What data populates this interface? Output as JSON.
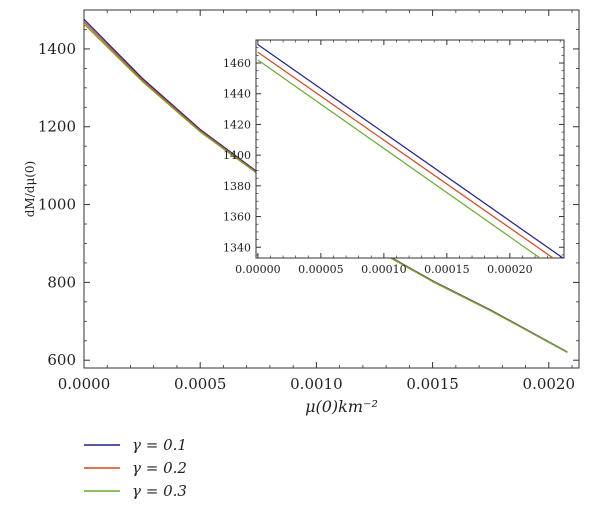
{
  "chart_data": {
    "type": "line",
    "xlabel": "μ(0)km⁻²",
    "ylabel": "dM/dμ(0)",
    "xlim": [
      0,
      0.00213
    ],
    "ylim": [
      580,
      1500
    ],
    "x_ticks": [
      "0.0000",
      "0.0005",
      "0.0010",
      "0.0015",
      "0.0020"
    ],
    "y_ticks": [
      "600",
      "800",
      "1000",
      "1200",
      "1400"
    ],
    "x": [
      0.0,
      0.00025,
      0.0005,
      0.00075,
      0.001,
      0.00125,
      0.0015,
      0.00175,
      0.00208
    ],
    "series": [
      {
        "name": "γ = 0.1",
        "color": "#1f1f8f",
        "values": [
          1476,
          1325,
          1193,
          1082,
          979,
          888,
          804,
          729,
          621
        ]
      },
      {
        "name": "γ = 0.2",
        "color": "#d9471a",
        "values": [
          1470,
          1321,
          1190,
          1080,
          978,
          887,
          803,
          728,
          620
        ]
      },
      {
        "name": "γ = 0.3",
        "color": "#6aab2e",
        "values": [
          1464,
          1317,
          1187,
          1078,
          976,
          886,
          802,
          727,
          620
        ]
      }
    ],
    "legend_position": "bottom-left",
    "inset": {
      "xlim": [
        -1.5e-06,
        0.000243
      ],
      "ylim": [
        1333,
        1475
      ],
      "x_ticks": [
        "0.00000",
        "0.00005",
        "0.00010",
        "0.00015",
        "0.00020"
      ],
      "y_ticks": [
        "1340",
        "1360",
        "1380",
        "1400",
        "1420",
        "1440",
        "1460"
      ],
      "x": [
        0.0,
        0.000243
      ],
      "series": [
        {
          "name": "γ = 0.1",
          "color": "#1f1f8f",
          "values": [
            1472,
            1332.5
          ]
        },
        {
          "name": "γ = 0.2",
          "color": "#d9471a",
          "values": [
            1467,
            1328
          ]
        },
        {
          "name": "γ = 0.3",
          "color": "#6aab2e",
          "values": [
            1462,
            1322
          ]
        }
      ]
    }
  }
}
